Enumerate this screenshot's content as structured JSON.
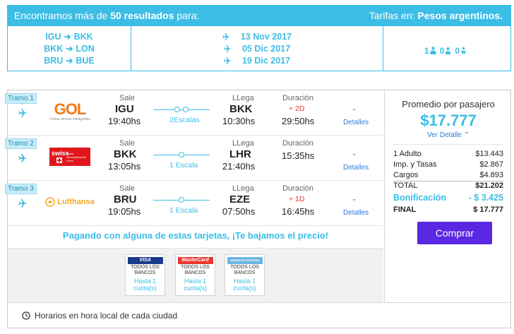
{
  "banner": {
    "found_prefix": "Encontramos más de",
    "found_count": "50 resultados",
    "found_suffix": "para:",
    "currency_prefix": "Tarifas en:",
    "currency": "Pesos argentinos."
  },
  "summary": {
    "routes": [
      {
        "from": "IGU",
        "to": "BKK"
      },
      {
        "from": "BKK",
        "to": "LON"
      },
      {
        "from": "BRU",
        "to": "BUE"
      }
    ],
    "dates": [
      "13 Nov 2017",
      "05 Dic 2017",
      "19 Dic 2017"
    ],
    "passengers": {
      "adults": "1",
      "children": "0",
      "infants": "0"
    }
  },
  "legs": [
    {
      "tramo": "Tramo 1",
      "airline": "GOL",
      "airline_tagline": "Linhas aéreas inteligentes",
      "sale_label": "Sale",
      "from": "IGU",
      "depart": "19:40hs",
      "stops": "2Escalas",
      "llega_label": "LLega",
      "to": "BKK",
      "arrive": "10:30hs",
      "dur_label": "Duración",
      "day_offset": "+ 2D",
      "duration": "29:50hs",
      "details": "Detalles"
    },
    {
      "tramo": "Tramo 2",
      "airline": "swiss",
      "airline_tagline": "Swiss International Air Lines",
      "sale_label": "Sale",
      "from": "BKK",
      "depart": "13:05hs",
      "stops": "1 Escala",
      "llega_label": "LLega",
      "to": "LHR",
      "arrive": "21:40hs",
      "dur_label": "Duración",
      "day_offset": "",
      "duration": "15:35hs",
      "details": "Detalles"
    },
    {
      "tramo": "Tramo 3",
      "airline": "Lufthansa",
      "airline_tagline": "",
      "sale_label": "Sale",
      "from": "BRU",
      "depart": "19:05hs",
      "stops": "1 Escala",
      "llega_label": "LLega",
      "to": "EZE",
      "arrive": "07:50hs",
      "dur_label": "Duración",
      "day_offset": "+ 1D",
      "duration": "16:45hs",
      "details": "Detalles"
    }
  ],
  "promo": {
    "text": "Pagando con alguna de estas tarjetas, ¡Te bajamos el precio!",
    "cards": [
      {
        "brand": "VISA",
        "line1": "TODOS LOS",
        "line2": "BANCOS",
        "cuota1": "Hasta 1",
        "cuota2": "cuota(s)",
        "color": "#1a3a8c"
      },
      {
        "brand": "MasterCard",
        "line1": "TODOS LOS",
        "line2": "BANCOS",
        "cuota1": "Hasta 1",
        "cuota2": "cuota(s)",
        "color": "#e8362d"
      },
      {
        "brand": "AMERICAN EXPRESS",
        "line1": "TODOS LOS",
        "line2": "BANCOS",
        "cuota1": "Hasta 1",
        "cuota2": "cuota(s)",
        "color": "#6bb6e3"
      }
    ]
  },
  "footer": {
    "text": "Horarios en hora local de cada ciudad"
  },
  "price": {
    "title": "Promedio por pasajero",
    "amount": "$17.777",
    "details_toggle": "Ver Detalle",
    "rows": [
      {
        "label": "1 Adulto",
        "value": "$13.443"
      },
      {
        "label": "Imp. y Tasas",
        "value": "$2.867"
      },
      {
        "label": "Cargos",
        "value": "$4.893"
      }
    ],
    "total_label": "TOTAL",
    "total_value": "$21.202",
    "bonus_label": "Bonificación",
    "bonus_value": "- $ 3.425",
    "final_label": "FINAL",
    "final_value": "$ 17.777",
    "buy_label": "Comprar"
  },
  "colors": {
    "accent": "#3cbde6",
    "button": "#5a28e2",
    "red": "#e33333",
    "link": "#2a7bd8"
  }
}
